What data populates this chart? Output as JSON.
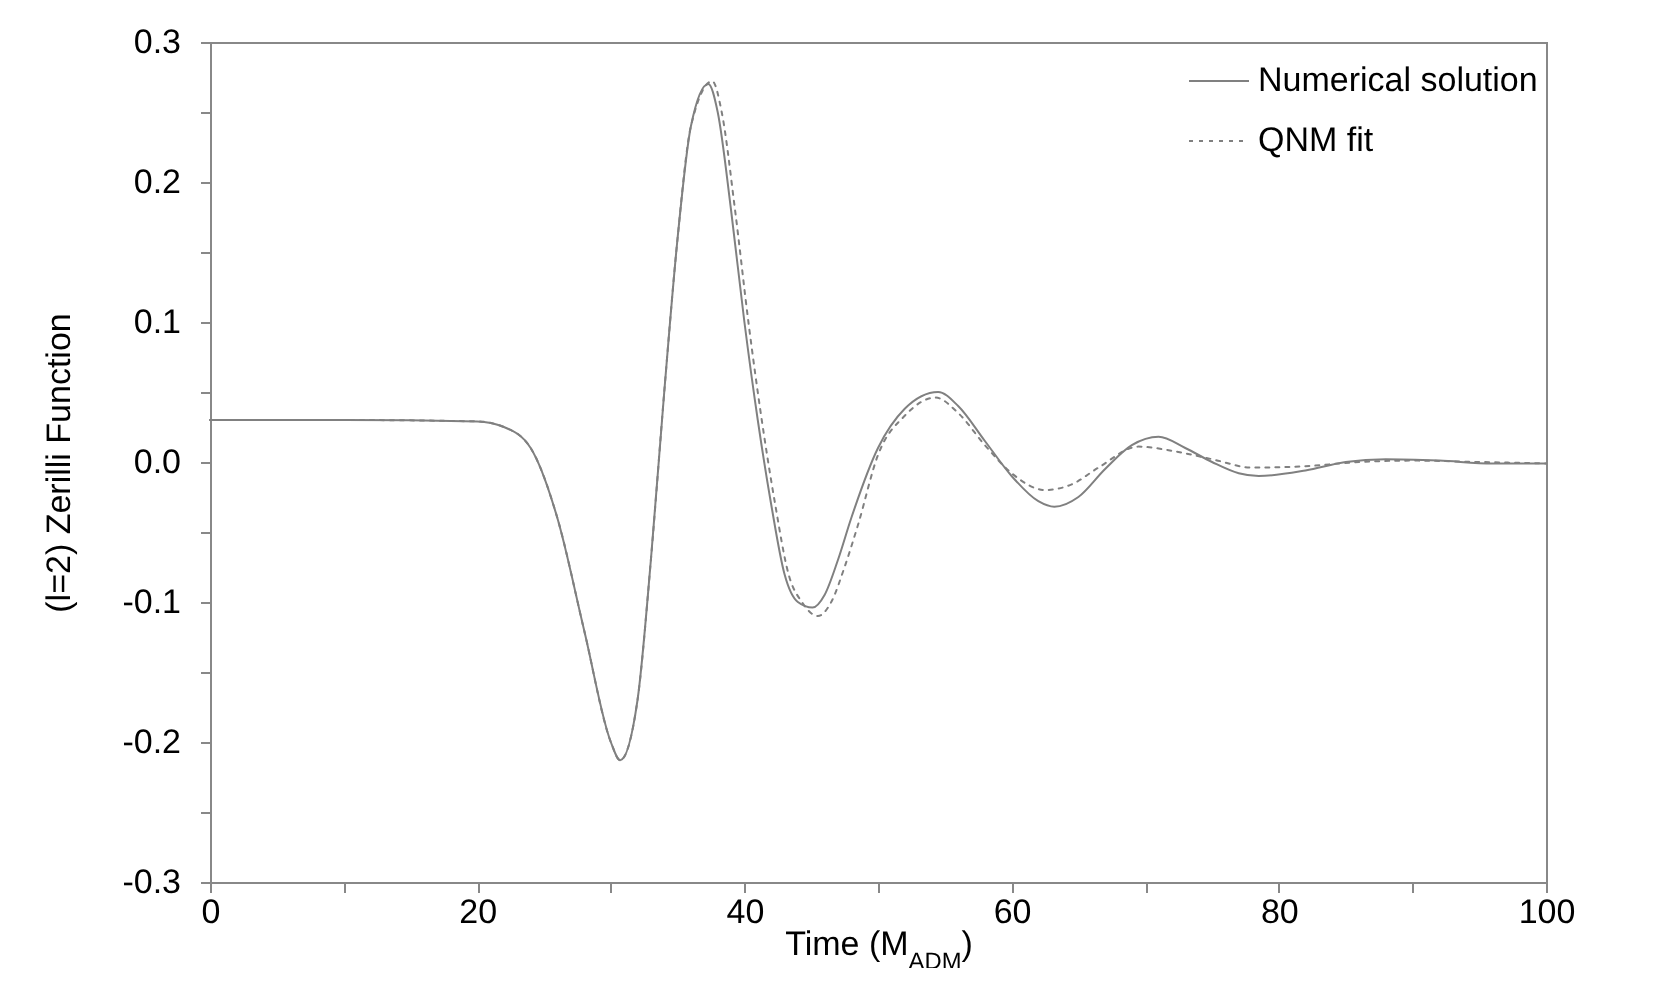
{
  "chart_data": {
    "type": "line",
    "xlabel": "Time (M$_{ADM}$)",
    "ylabel": "(l=2) Zerilli Function",
    "xlim": [
      0,
      100
    ],
    "ylim": [
      -0.3,
      0.3
    ],
    "xticks": [
      0,
      {
        "value": 10,
        "label": null
      },
      20,
      {
        "value": 30,
        "label": null
      },
      40,
      {
        "value": 50,
        "label": null
      },
      60,
      {
        "value": 70,
        "label": null
      },
      80,
      {
        "value": 90,
        "label": null
      },
      100
    ],
    "yticks": [
      -0.3,
      {
        "value": -0.25,
        "label": null
      },
      -0.2,
      {
        "value": -0.15,
        "label": null
      },
      -0.1,
      {
        "value": -0.05,
        "label": null
      },
      {
        "value": 0,
        "label": "0.0"
      },
      {
        "value": 0.05,
        "label": null
      },
      0.1,
      {
        "value": 0.15,
        "label": null
      },
      0.2,
      {
        "value": 0.25,
        "label": null
      },
      0.3
    ],
    "grid": false,
    "legend": "top right",
    "marker": "none",
    "series": [
      {
        "name": "Numerical solution",
        "color": "#808080",
        "line_style": "solid",
        "x": [
          0,
          10,
          20,
          22,
          24,
          26,
          28,
          30,
          30.7,
          32,
          33,
          34,
          35,
          36,
          37.3,
          38,
          39,
          40,
          41,
          42,
          43,
          44,
          45.1,
          46,
          47,
          48,
          50,
          52,
          54.5,
          56,
          58,
          60,
          62,
          63.2,
          65,
          67,
          69,
          71,
          73,
          75,
          77,
          78.5,
          82,
          85,
          88,
          92,
          96,
          100
        ],
        "values": [
          0.03,
          0.03,
          0.029,
          0.025,
          0.01,
          -0.04,
          -0.12,
          -0.2,
          -0.213,
          -0.17,
          -0.07,
          0.05,
          0.16,
          0.24,
          0.27,
          0.25,
          0.18,
          0.1,
          0.03,
          -0.03,
          -0.08,
          -0.1,
          -0.104,
          -0.095,
          -0.07,
          -0.04,
          0.01,
          0.038,
          0.05,
          0.04,
          0.015,
          -0.01,
          -0.028,
          -0.032,
          -0.025,
          -0.005,
          0.012,
          0.018,
          0.01,
          0.0,
          -0.008,
          -0.01,
          -0.006,
          0.0,
          0.002,
          0.001,
          -0.001,
          -0.001
        ]
      },
      {
        "name": "QNM fit",
        "color": "#808080",
        "line_style": "dotted",
        "x": [
          0,
          10,
          20,
          22,
          24,
          26,
          28,
          30,
          30.7,
          32,
          33,
          34,
          35,
          36,
          37.6,
          38.3,
          39.3,
          40.3,
          41.3,
          42.3,
          43.3,
          44.3,
          45.5,
          46.5,
          47.5,
          48.5,
          50,
          52,
          54.3,
          56,
          58,
          60,
          62.5,
          64.5,
          66.5,
          69.5,
          72,
          75,
          78,
          82,
          86,
          90,
          95,
          100
        ],
        "values": [
          0.03,
          0.03,
          0.029,
          0.025,
          0.01,
          -0.04,
          -0.12,
          -0.2,
          -0.213,
          -0.17,
          -0.07,
          0.05,
          0.16,
          0.24,
          0.272,
          0.25,
          0.18,
          0.1,
          0.03,
          -0.03,
          -0.08,
          -0.1,
          -0.11,
          -0.1,
          -0.075,
          -0.045,
          0.005,
          0.033,
          0.046,
          0.035,
          0.012,
          -0.008,
          -0.02,
          -0.016,
          -0.004,
          0.011,
          0.008,
          0.002,
          -0.004,
          -0.003,
          0.0,
          0.001,
          0.0,
          -0.001
        ]
      }
    ]
  }
}
